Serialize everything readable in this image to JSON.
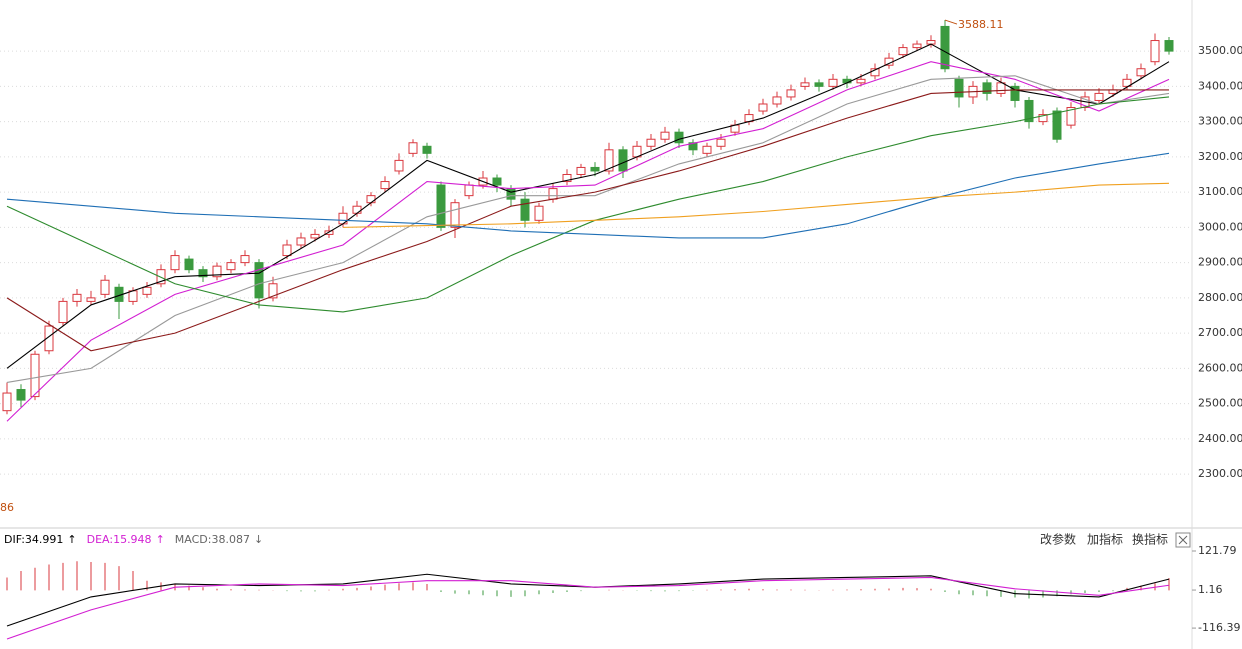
{
  "chart_data": [
    {
      "type": "candlestick",
      "up_color": "#d9373e",
      "down_color": "#3b9a3f",
      "ylim": [
        2150,
        3645
      ],
      "yticks": [
        {
          "value": 2300,
          "label": "2300.00"
        },
        {
          "value": 2400,
          "label": "2400.00"
        },
        {
          "value": 2500,
          "label": "2500.00"
        },
        {
          "value": 2600,
          "label": "2600.00"
        },
        {
          "value": 2700,
          "label": "2700.00"
        },
        {
          "value": 2800,
          "label": "2800.00"
        },
        {
          "value": 2900,
          "label": "2900.00"
        },
        {
          "value": 3000,
          "label": "3000.00"
        },
        {
          "value": 3100,
          "label": "3100.00"
        },
        {
          "value": 3200,
          "label": "3200.00"
        },
        {
          "value": 3300,
          "label": "3300.00"
        },
        {
          "value": 3400,
          "label": "3400.00"
        },
        {
          "value": 3500,
          "label": "3500.00"
        }
      ],
      "grid": true,
      "open": [
        2480,
        2540,
        2520,
        2650,
        2730,
        2790,
        2790,
        2810,
        2830,
        2790,
        2810,
        2840,
        2880,
        2910,
        2880,
        2860,
        2880,
        2900,
        2900,
        2800,
        2920,
        2950,
        2970,
        2980,
        3010,
        3040,
        3070,
        3110,
        3160,
        3210,
        3230,
        3120,
        3000,
        3090,
        3120,
        3140,
        3110,
        3080,
        3020,
        3080,
        3130,
        3150,
        3170,
        3160,
        3220,
        3200,
        3230,
        3250,
        3270,
        3240,
        3210,
        3230,
        3270,
        3300,
        3330,
        3350,
        3370,
        3400,
        3410,
        3400,
        3420,
        3410,
        3430,
        3460,
        3490,
        3510,
        3520,
        3570,
        3420,
        3370,
        3410,
        3380,
        3400,
        3360,
        3300,
        3330,
        3290,
        3340,
        3360,
        3380,
        3400,
        3430,
        3470,
        3530
      ],
      "high": [
        2560,
        2555,
        2650,
        2735,
        2800,
        2825,
        2820,
        2865,
        2840,
        2830,
        2845,
        2895,
        2935,
        2920,
        2890,
        2900,
        2910,
        2935,
        2910,
        2860,
        2965,
        2985,
        2995,
        3005,
        3060,
        3075,
        3100,
        3145,
        3210,
        3250,
        3240,
        3130,
        3080,
        3130,
        3160,
        3150,
        3120,
        3100,
        3070,
        3125,
        3165,
        3180,
        3185,
        3240,
        3230,
        3245,
        3265,
        3285,
        3280,
        3250,
        3240,
        3265,
        3305,
        3335,
        3365,
        3385,
        3405,
        3425,
        3420,
        3435,
        3430,
        3435,
        3465,
        3495,
        3520,
        3530,
        3545,
        3588.11,
        3430,
        3415,
        3420,
        3425,
        3410,
        3370,
        3335,
        3340,
        3355,
        3385,
        3395,
        3405,
        3435,
        3465,
        3550,
        3540
      ],
      "low": [
        2470,
        2490,
        2510,
        2640,
        2720,
        2775,
        2780,
        2800,
        2740,
        2780,
        2800,
        2830,
        2870,
        2870,
        2845,
        2850,
        2870,
        2890,
        2770,
        2790,
        2910,
        2940,
        2960,
        2970,
        3000,
        3030,
        3060,
        3100,
        3150,
        3200,
        3195,
        2990,
        2970,
        3080,
        3110,
        3100,
        3060,
        3000,
        3010,
        3070,
        3120,
        3140,
        3145,
        3150,
        3140,
        3190,
        3220,
        3240,
        3225,
        3205,
        3200,
        3220,
        3260,
        3290,
        3320,
        3340,
        3360,
        3390,
        3385,
        3390,
        3395,
        3400,
        3420,
        3450,
        3480,
        3500,
        3510,
        3440,
        3340,
        3350,
        3360,
        3370,
        3340,
        3280,
        3290,
        3240,
        3280,
        3330,
        3350,
        3370,
        3390,
        3420,
        3460,
        3490
      ],
      "close": [
        2530,
        2510,
        2640,
        2720,
        2790,
        2810,
        2800,
        2850,
        2790,
        2820,
        2830,
        2880,
        2920,
        2880,
        2860,
        2890,
        2900,
        2920,
        2800,
        2840,
        2950,
        2970,
        2980,
        2990,
        3040,
        3060,
        3090,
        3130,
        3190,
        3240,
        3210,
        3000,
        3070,
        3120,
        3140,
        3120,
        3080,
        3020,
        3060,
        3110,
        3150,
        3170,
        3160,
        3220,
        3160,
        3230,
        3250,
        3270,
        3240,
        3220,
        3230,
        3250,
        3290,
        3320,
        3350,
        3370,
        3390,
        3410,
        3400,
        3420,
        3410,
        3420,
        3450,
        3480,
        3510,
        3520,
        3530,
        3450,
        3370,
        3400,
        3380,
        3410,
        3360,
        3300,
        3320,
        3250,
        3340,
        3370,
        3380,
        3390,
        3420,
        3450,
        3530,
        3500
      ],
      "max_label": "3588.11",
      "max_index": 67,
      "min_label": "86",
      "lines": [
        {
          "color": "#000000",
          "x": [
            0,
            6,
            12,
            18,
            24,
            30,
            36,
            42,
            48,
            54,
            60,
            66,
            72,
            78,
            83
          ],
          "values": [
            2600,
            2780,
            2860,
            2870,
            3010,
            3190,
            3100,
            3150,
            3250,
            3310,
            3410,
            3520,
            3390,
            3350,
            3470
          ]
        },
        {
          "color": "#d21fd2",
          "x": [
            0,
            6,
            12,
            18,
            24,
            30,
            36,
            42,
            48,
            54,
            60,
            66,
            72,
            78,
            83
          ],
          "values": [
            2450,
            2680,
            2810,
            2880,
            2950,
            3130,
            3110,
            3120,
            3230,
            3280,
            3390,
            3470,
            3420,
            3330,
            3420
          ]
        },
        {
          "color": "#999999",
          "x": [
            0,
            6,
            12,
            18,
            24,
            30,
            36,
            42,
            48,
            54,
            60,
            66,
            72,
            78,
            83
          ],
          "values": [
            2560,
            2600,
            2750,
            2840,
            2900,
            3030,
            3090,
            3090,
            3180,
            3240,
            3350,
            3420,
            3430,
            3350,
            3380
          ]
        },
        {
          "color": "#8b1a1a",
          "x": [
            0,
            6,
            12,
            18,
            24,
            30,
            36,
            42,
            48,
            54,
            60,
            66,
            72,
            78,
            83
          ],
          "values": [
            2800,
            2650,
            2700,
            2790,
            2880,
            2960,
            3060,
            3100,
            3160,
            3230,
            3310,
            3380,
            3390,
            3390,
            3390
          ]
        },
        {
          "color": "#2e8b2e",
          "x": [
            0,
            6,
            12,
            18,
            24,
            30,
            36,
            42,
            48,
            54,
            60,
            66,
            72,
            78,
            83
          ],
          "values": [
            3060,
            2950,
            2840,
            2780,
            2760,
            2800,
            2920,
            3020,
            3080,
            3130,
            3200,
            3260,
            3300,
            3350,
            3370
          ]
        },
        {
          "color": "#1f6fb5",
          "x": [
            0,
            6,
            12,
            18,
            24,
            30,
            36,
            42,
            48,
            54,
            60,
            66,
            72,
            78,
            83
          ],
          "values": [
            3080,
            3060,
            3040,
            3030,
            3020,
            3010,
            2990,
            2980,
            2970,
            2970,
            3010,
            3080,
            3140,
            3180,
            3210
          ]
        },
        {
          "color": "#f0a020",
          "x": [
            24,
            30,
            36,
            42,
            48,
            54,
            60,
            66,
            72,
            78,
            83
          ],
          "values": [
            3000,
            3005,
            3010,
            3020,
            3030,
            3045,
            3065,
            3085,
            3100,
            3120,
            3125
          ]
        }
      ]
    },
    {
      "type": "macd",
      "ylim": [
        -181,
        128
      ],
      "yticks": [
        121.79,
        1.16,
        -116.39
      ],
      "up_color": "#d9373e",
      "down_color": "#3b9a3f",
      "legend": [
        {
          "text": "DIF:34.991",
          "arrow": "↑",
          "color": "#000000"
        },
        {
          "text": "DEA:15.948",
          "arrow": "↑",
          "color": "#d21fd2"
        },
        {
          "text": "MACD:38.087",
          "arrow": "↓",
          "color": "#666666"
        }
      ],
      "toolbar": [
        "改参数",
        "加指标",
        "换指标"
      ],
      "values": [
        40,
        60,
        70,
        80,
        85,
        90,
        88,
        85,
        75,
        60,
        30,
        25,
        20,
        15,
        10,
        5,
        4,
        3,
        2,
        1,
        -2,
        -3,
        -3,
        2,
        5,
        8,
        12,
        18,
        22,
        25,
        20,
        -5,
        -10,
        -12,
        -15,
        -18,
        -20,
        -18,
        -12,
        -8,
        -5,
        -2,
        0,
        2,
        1,
        -1,
        -2,
        -3,
        -2,
        -1,
        2,
        3,
        4,
        5,
        4,
        3,
        3,
        2,
        1,
        2,
        3,
        4,
        5,
        6,
        8,
        7,
        5,
        -5,
        -12,
        -15,
        -18,
        -20,
        -22,
        -25,
        -22,
        -18,
        -12,
        -8,
        -5,
        -2,
        8,
        15,
        22,
        38
      ],
      "series": [
        {
          "color": "#000000",
          "x": [
            0,
            6,
            12,
            18,
            24,
            30,
            36,
            42,
            48,
            54,
            60,
            66,
            72,
            78,
            83
          ],
          "values": [
            -110,
            -20,
            20,
            15,
            20,
            50,
            20,
            10,
            20,
            35,
            40,
            45,
            -10,
            -20,
            35
          ]
        },
        {
          "color": "#d21fd2",
          "x": [
            0,
            6,
            12,
            18,
            24,
            30,
            36,
            42,
            48,
            54,
            60,
            66,
            72,
            78,
            83
          ],
          "values": [
            -150,
            -60,
            10,
            20,
            15,
            30,
            30,
            10,
            15,
            30,
            35,
            40,
            5,
            -15,
            16
          ]
        }
      ]
    }
  ]
}
